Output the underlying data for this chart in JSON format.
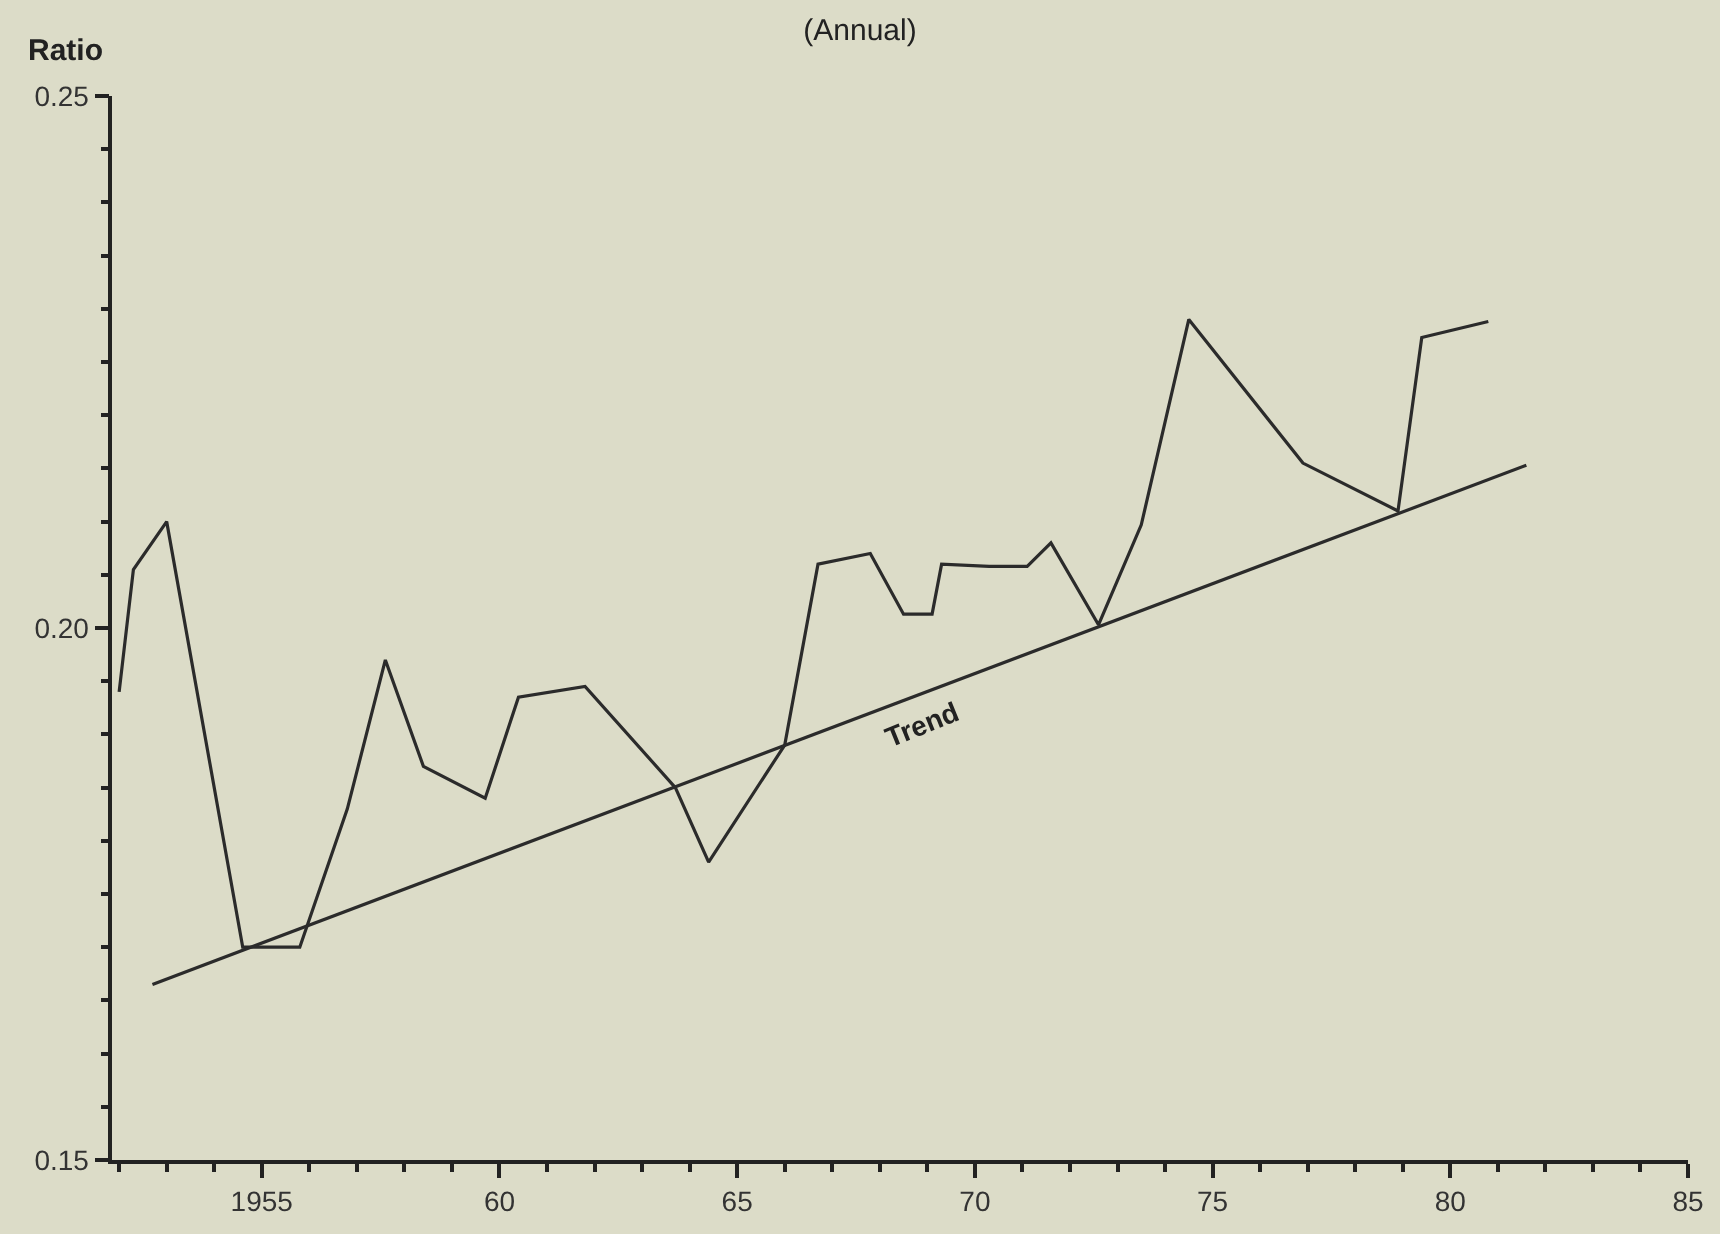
{
  "chart_data": {
    "type": "line",
    "title": "(Annual)",
    "ylabel": "Ratio",
    "series": [
      {
        "color": "#2b2b2b",
        "x": [
          1952.0,
          1952.3,
          1953.0,
          1954.6,
          1955.8,
          1956.8,
          1957.6,
          1958.4,
          1959.7,
          1960.4,
          1961.8,
          1963.7,
          1964.4,
          1966.0,
          1966.7,
          1967.8,
          1968.5,
          1969.1,
          1969.3,
          1970.3,
          1971.1,
          1971.6,
          1972.6,
          1973.5,
          1974.5,
          1976.9,
          1978.9,
          1979.4,
          1980.8
        ],
        "values": [
          0.194,
          0.2055,
          0.21,
          0.17,
          0.17,
          0.183,
          0.197,
          0.187,
          0.184,
          0.1935,
          0.1945,
          0.185,
          0.178,
          0.189,
          0.206,
          0.207,
          0.2013,
          0.2013,
          0.206,
          0.2058,
          0.2058,
          0.208,
          0.2003,
          0.2097,
          0.229,
          0.2155,
          0.211,
          0.2273,
          0.2288
        ]
      },
      {
        "type": "line",
        "color": "#2b2b2b",
        "x": [
          1952.7,
          1981.6
        ],
        "values": [
          0.1665,
          0.2153
        ]
      }
    ],
    "annotations": [
      {
        "text": "Trend",
        "x": 1968.9,
        "y": 0.1939
      }
    ],
    "xlim": [
      1951.85,
      1985
    ],
    "ylim": [
      0.15,
      0.25
    ],
    "xticks": [
      {
        "value": 1955,
        "label": "1955"
      },
      {
        "value": 1960,
        "label": "60"
      },
      {
        "value": 1965,
        "label": "65"
      },
      {
        "value": 1970,
        "label": "70"
      },
      {
        "value": 1975,
        "label": "75"
      },
      {
        "value": 1980,
        "label": "80"
      },
      {
        "value": 1985,
        "label": "85"
      }
    ],
    "yticks": [
      {
        "value": 0.15,
        "label": "0.15"
      },
      {
        "value": 0.2,
        "label": "0.20"
      },
      {
        "value": 0.25,
        "label": "0.25"
      }
    ],
    "grid": false,
    "marker": "none",
    "line_style": "solid"
  }
}
